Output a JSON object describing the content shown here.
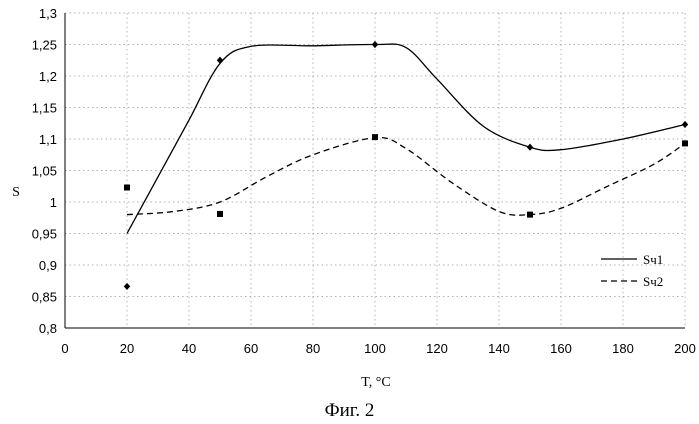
{
  "caption": "Фиг. 2",
  "chart_data": {
    "type": "line",
    "xlabel": "T, °C",
    "ylabel": "S",
    "xlim": [
      0,
      200
    ],
    "ylim": [
      0.8,
      1.3
    ],
    "xticks": [
      0,
      20,
      40,
      60,
      80,
      100,
      120,
      140,
      160,
      180,
      200
    ],
    "yticks": [
      0.8,
      0.85,
      0.9,
      0.95,
      1,
      1.05,
      1.1,
      1.15,
      1.2,
      1.25,
      1.3
    ],
    "xtick_labels": [
      "0",
      "20",
      "40",
      "60",
      "80",
      "100",
      "120",
      "140",
      "160",
      "180",
      "200"
    ],
    "ytick_labels": [
      "0,8",
      "0,85",
      "0,9",
      "0,95",
      "1",
      "1,05",
      "1,1",
      "1,15",
      "1,2",
      "1,25",
      "1,3"
    ],
    "grid": "dotted",
    "legend_position": "right",
    "series": [
      {
        "name": "Sч1",
        "line_style": "solid",
        "marker": "diamond",
        "points": [
          [
            20,
            0.866
          ],
          [
            50,
            1.225
          ],
          [
            100,
            1.25
          ],
          [
            150,
            1.087
          ],
          [
            200,
            1.123
          ]
        ],
        "curve": [
          [
            20,
            0.95
          ],
          [
            30,
            1.04
          ],
          [
            40,
            1.13
          ],
          [
            50,
            1.22
          ],
          [
            60,
            1.247
          ],
          [
            80,
            1.248
          ],
          [
            100,
            1.25
          ],
          [
            110,
            1.245
          ],
          [
            120,
            1.195
          ],
          [
            135,
            1.12
          ],
          [
            150,
            1.087
          ],
          [
            160,
            1.083
          ],
          [
            180,
            1.1
          ],
          [
            200,
            1.123
          ]
        ]
      },
      {
        "name": "Sч2",
        "line_style": "dashed",
        "marker": "square",
        "points": [
          [
            20,
            1.023
          ],
          [
            50,
            0.981
          ],
          [
            100,
            1.103
          ],
          [
            150,
            0.98
          ],
          [
            200,
            1.093
          ]
        ],
        "curve": [
          [
            20,
            0.98
          ],
          [
            35,
            0.985
          ],
          [
            50,
            1.0
          ],
          [
            65,
            1.04
          ],
          [
            80,
            1.075
          ],
          [
            100,
            1.102
          ],
          [
            110,
            1.085
          ],
          [
            125,
            1.03
          ],
          [
            140,
            0.985
          ],
          [
            150,
            0.98
          ],
          [
            160,
            0.99
          ],
          [
            175,
            1.025
          ],
          [
            190,
            1.06
          ],
          [
            200,
            1.093
          ]
        ]
      }
    ]
  }
}
